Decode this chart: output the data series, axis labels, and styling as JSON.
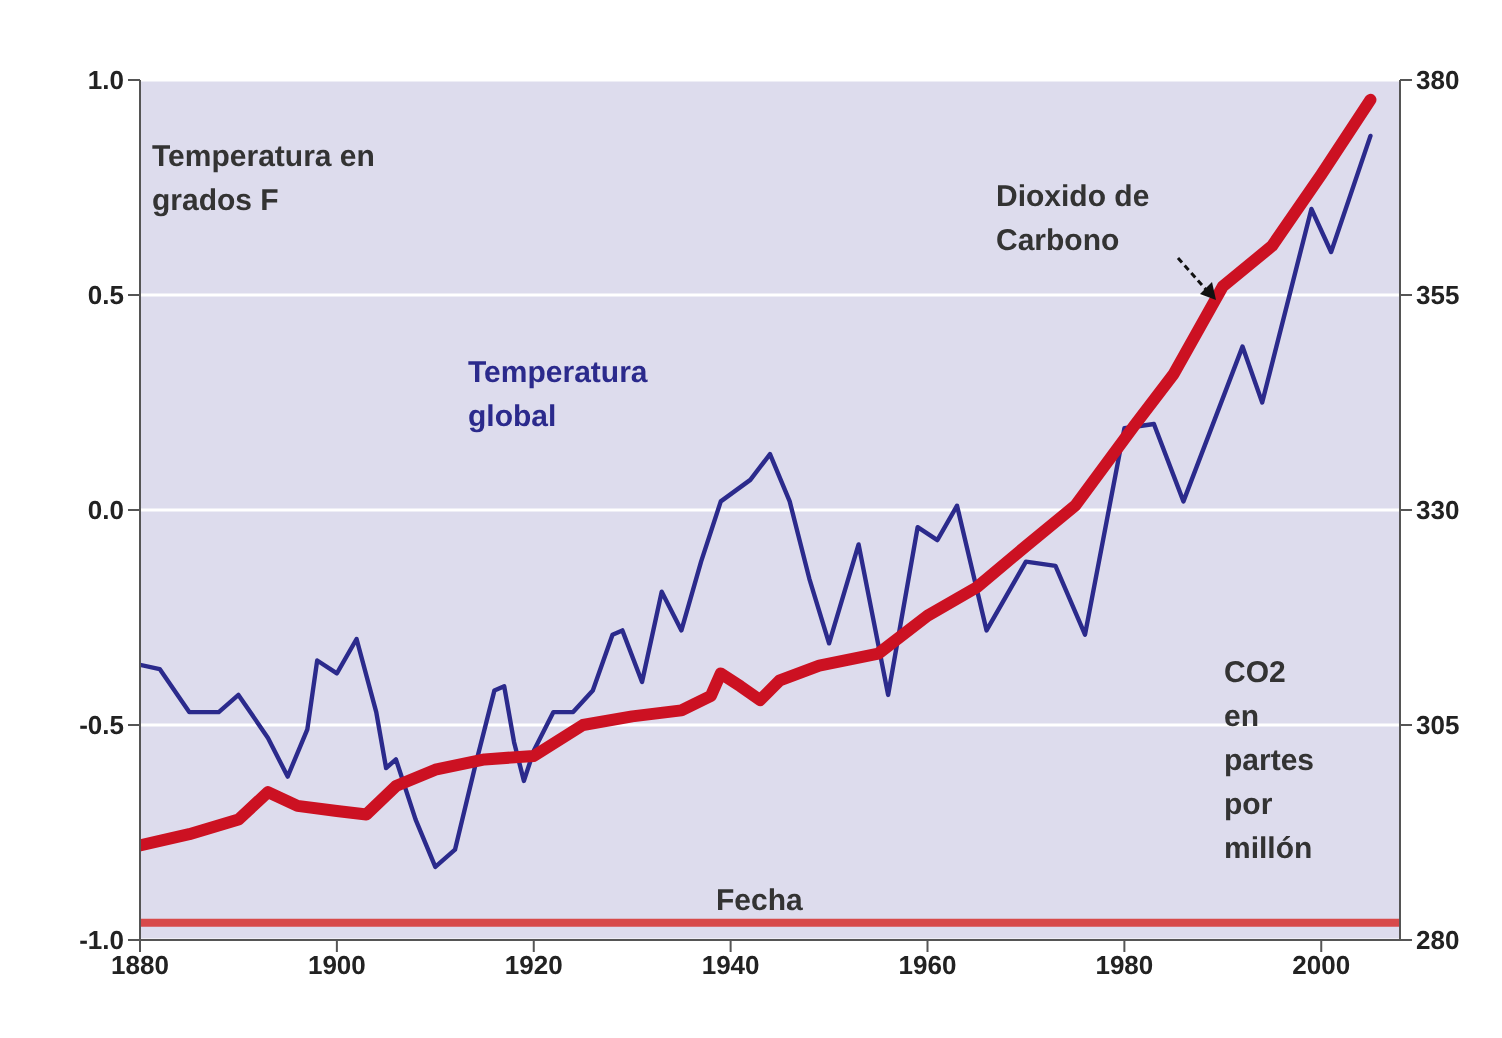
{
  "chart_data": {
    "type": "line",
    "xlabel": "Fecha",
    "ylabel": "Temperatura en grados F",
    "y2label": "CO2 en partes por millón",
    "xlim": [
      1880,
      2008
    ],
    "xticks": [
      1880,
      1900,
      1920,
      1940,
      1960,
      1980,
      2000
    ],
    "ylim": [
      -1,
      1
    ],
    "yticks": [
      {
        "value": -1,
        "label": "-1.0"
      },
      -0.5,
      {
        "value": 0,
        "label": "0.0"
      },
      0.5,
      {
        "value": 1,
        "label": "1.0"
      }
    ],
    "y2lim": [
      280,
      380
    ],
    "y2ticks": [
      280,
      305,
      330,
      355,
      380
    ],
    "grid": "y",
    "line_style": "solid",
    "ref_lines": [
      {
        "axis": "y",
        "value": -0.96,
        "color": "#d84a4a"
      }
    ],
    "series": [
      {
        "name": "Temperatura global",
        "color": "#2b2a8c",
        "x": [
          1880,
          1882,
          1885,
          1888,
          1890,
          1893,
          1895,
          1897,
          1898,
          1900,
          1902,
          1904,
          1905,
          1906,
          1908,
          1910,
          1912,
          1914,
          1916,
          1917,
          1918,
          1919,
          1920,
          1922,
          1924,
          1926,
          1928,
          1929,
          1931,
          1933,
          1935,
          1937,
          1939,
          1942,
          1944,
          1946,
          1948,
          1950,
          1953,
          1956,
          1959,
          1961,
          1963,
          1966,
          1970,
          1973,
          1976,
          1980,
          1983,
          1986,
          1992,
          1994,
          1999,
          2001,
          2005
        ],
        "values": [
          -0.36,
          -0.37,
          -0.47,
          -0.47,
          -0.43,
          -0.53,
          -0.62,
          -0.51,
          -0.35,
          -0.38,
          -0.3,
          -0.47,
          -0.6,
          -0.58,
          -0.72,
          -0.83,
          -0.79,
          -0.6,
          -0.42,
          -0.41,
          -0.54,
          -0.63,
          -0.56,
          -0.47,
          -0.47,
          -0.42,
          -0.29,
          -0.28,
          -0.4,
          -0.19,
          -0.28,
          -0.12,
          0.02,
          0.07,
          0.13,
          0.02,
          -0.16,
          -0.31,
          -0.08,
          -0.43,
          -0.04,
          -0.07,
          0.01,
          -0.28,
          -0.12,
          -0.13,
          -0.29,
          0.19,
          0.2,
          0.02,
          0.38,
          0.25,
          0.7,
          0.6,
          0.87
        ]
      },
      {
        "name": "Dioxido de Carbono",
        "color": "#cc1122",
        "axis": "y2",
        "x": [
          1880,
          1885,
          1890,
          1893,
          1896,
          1900,
          1903,
          1906,
          1910,
          1915,
          1920,
          1925,
          1930,
          1935,
          1938,
          1939,
          1941,
          1943,
          1945,
          1949,
          1955,
          1960,
          1965,
          1970,
          1975,
          1981,
          1985,
          1990,
          1995,
          2000,
          2005
        ],
        "values": [
          291,
          292.3,
          294,
          297.2,
          295.6,
          295,
          294.6,
          297.9,
          299.8,
          301,
          301.4,
          305,
          306,
          306.7,
          308.4,
          311,
          309.5,
          307.9,
          310.2,
          311.9,
          313.3,
          317.7,
          321,
          325.8,
          330.5,
          339.8,
          345.8,
          356,
          360.7,
          369,
          377.7
        ]
      }
    ]
  }
}
